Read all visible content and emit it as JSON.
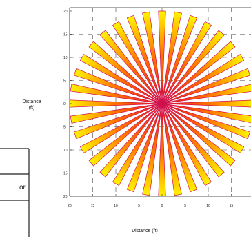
{
  "chart_data": {
    "type": "radial-pattern",
    "title": "",
    "xlabel": "Distance (ft)",
    "ylabel_line1": "Distance",
    "ylabel_line2": "(ft)",
    "xlim": [
      -20,
      20
    ],
    "ylim": [
      -20,
      20
    ],
    "x_ticks": [
      "20",
      "15",
      "10",
      "5",
      "0",
      "5",
      "10",
      "15"
    ],
    "y_ticks": [
      "20",
      "15",
      "10",
      "5",
      "0",
      "5",
      "10",
      "15",
      "20"
    ],
    "grid": true,
    "ray_count": 36,
    "ray_length_ft": 20,
    "gradient_colors": [
      "#e8141c",
      "#ff7a00",
      "#fff200"
    ],
    "outline_color": "#d0104c"
  },
  "side_fragment": {
    "text": "or"
  }
}
